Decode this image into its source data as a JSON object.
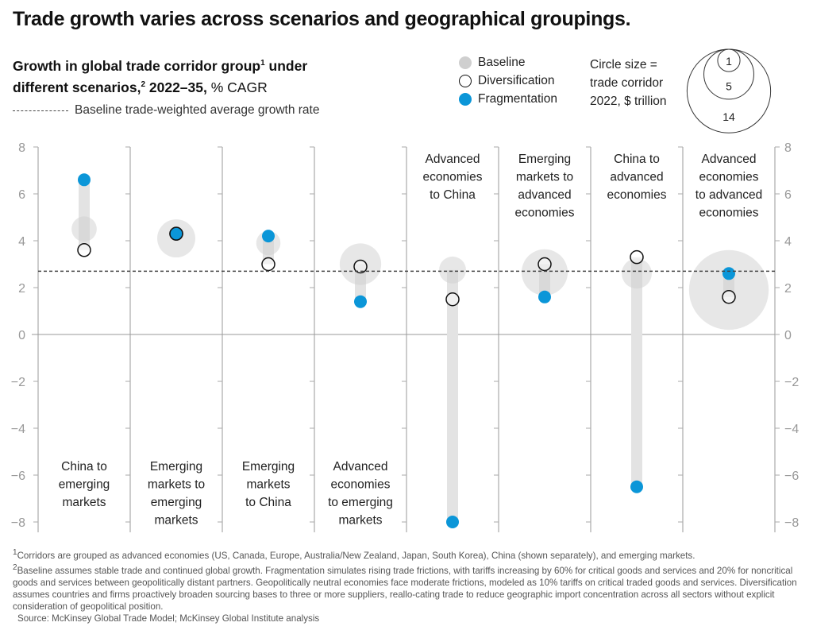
{
  "title": "Trade growth varies across scenarios and geographical groupings.",
  "subtitle": {
    "line1": "Growth in global trade corridor group",
    "sup1": "1",
    "line1b": " under",
    "line2": "different scenarios,",
    "sup2": "2",
    "years": " 2022–35,",
    "unit": " % CAGR"
  },
  "average_legend": "Baseline trade-weighted average growth rate",
  "legend": [
    {
      "name": "Baseline",
      "style": "filled-gray"
    },
    {
      "name": "Diversification",
      "style": "outline-black"
    },
    {
      "name": "Fragmentation",
      "style": "filled-blue"
    }
  ],
  "size_legend": {
    "lines": [
      "Circle size =",
      "trade corridor",
      "2022, $ trillion"
    ],
    "values": [
      1,
      5,
      14
    ]
  },
  "colors": {
    "baseline": "#d9d9d9",
    "fragmentation": "#0b96d8",
    "range_band": "#e3e3e3",
    "diversification_stroke": "#111111"
  },
  "chart_data": {
    "type": "dot-range",
    "ylim": [
      -8,
      8
    ],
    "yticks": [
      8,
      6,
      4,
      2,
      0,
      -2,
      -4,
      -6,
      -8
    ],
    "grid": false,
    "baseline_average": 2.7,
    "categories": [
      {
        "label": "China to emerging markets",
        "lines": [
          "China to",
          "emerging",
          "markets"
        ],
        "label_pos": "bottom",
        "baseline": 4.5,
        "diversification": 3.6,
        "fragmentation": 6.6,
        "size": 1.4
      },
      {
        "label": "Emerging markets to emerging markets",
        "lines": [
          "Emerging",
          "markets to",
          "emerging",
          "markets"
        ],
        "label_pos": "bottom",
        "baseline": 4.1,
        "diversification": 4.3,
        "fragmentation": 4.3,
        "size": 3.2
      },
      {
        "label": "Emerging markets to China",
        "lines": [
          "Emerging",
          "markets",
          "to China"
        ],
        "label_pos": "bottom",
        "baseline": 3.9,
        "diversification": 3.0,
        "fragmentation": 4.2,
        "size": 1.3
      },
      {
        "label": "Advanced economies to emerging markets",
        "lines": [
          "Advanced",
          "economies",
          "to emerging",
          "markets"
        ],
        "label_pos": "bottom",
        "baseline": 3.0,
        "diversification": 2.9,
        "fragmentation": 1.4,
        "size": 3.8
      },
      {
        "label": "Advanced economies to China",
        "lines": [
          "Advanced",
          "economies",
          "to China"
        ],
        "label_pos": "top",
        "baseline": 2.75,
        "diversification": 1.5,
        "fragmentation": -8.0,
        "size": 1.6
      },
      {
        "label": "Emerging markets to advanced economies",
        "lines": [
          "Emerging",
          "markets to",
          "advanced",
          "economies"
        ],
        "label_pos": "top",
        "baseline": 2.65,
        "diversification": 3.0,
        "fragmentation": 1.6,
        "size": 4.7
      },
      {
        "label": "China to advanced economies",
        "lines": [
          "China to",
          "advanced",
          "economies"
        ],
        "label_pos": "top",
        "baseline": 2.6,
        "diversification": 3.3,
        "fragmentation": -6.5,
        "size": 2.0
      },
      {
        "label": "Advanced economies to advanced economies",
        "lines": [
          "Advanced",
          "economies",
          "to advanced",
          "economies"
        ],
        "label_pos": "top",
        "baseline": 1.9,
        "diversification": 1.6,
        "fragmentation": 2.6,
        "size": 14
      }
    ]
  },
  "footnotes": [
    {
      "sup": "1",
      "text": "Corridors are grouped as advanced economies (US, Canada, Europe, Australia/New Zealand, Japan, South Korea), China (shown separately), and emerging markets."
    },
    {
      "sup": "2",
      "text": "Baseline assumes stable trade and continued global growth. Fragmentation simulates rising trade frictions, with tariffs increasing by 60% for critical goods and services and 20% for noncritical goods and services between geopolitically distant partners. Geopolitically neutral economies face moderate frictions, modeled as 10% tariffs on critical traded goods and services. Diversification assumes countries and firms proactively broaden sourcing bases to three or more suppliers, reallo-cating trade to reduce geographic import concentration across all sectors without explicit consideration of geopolitical position."
    }
  ],
  "source": "Source: McKinsey Global Trade Model; McKinsey Global Institute analysis"
}
